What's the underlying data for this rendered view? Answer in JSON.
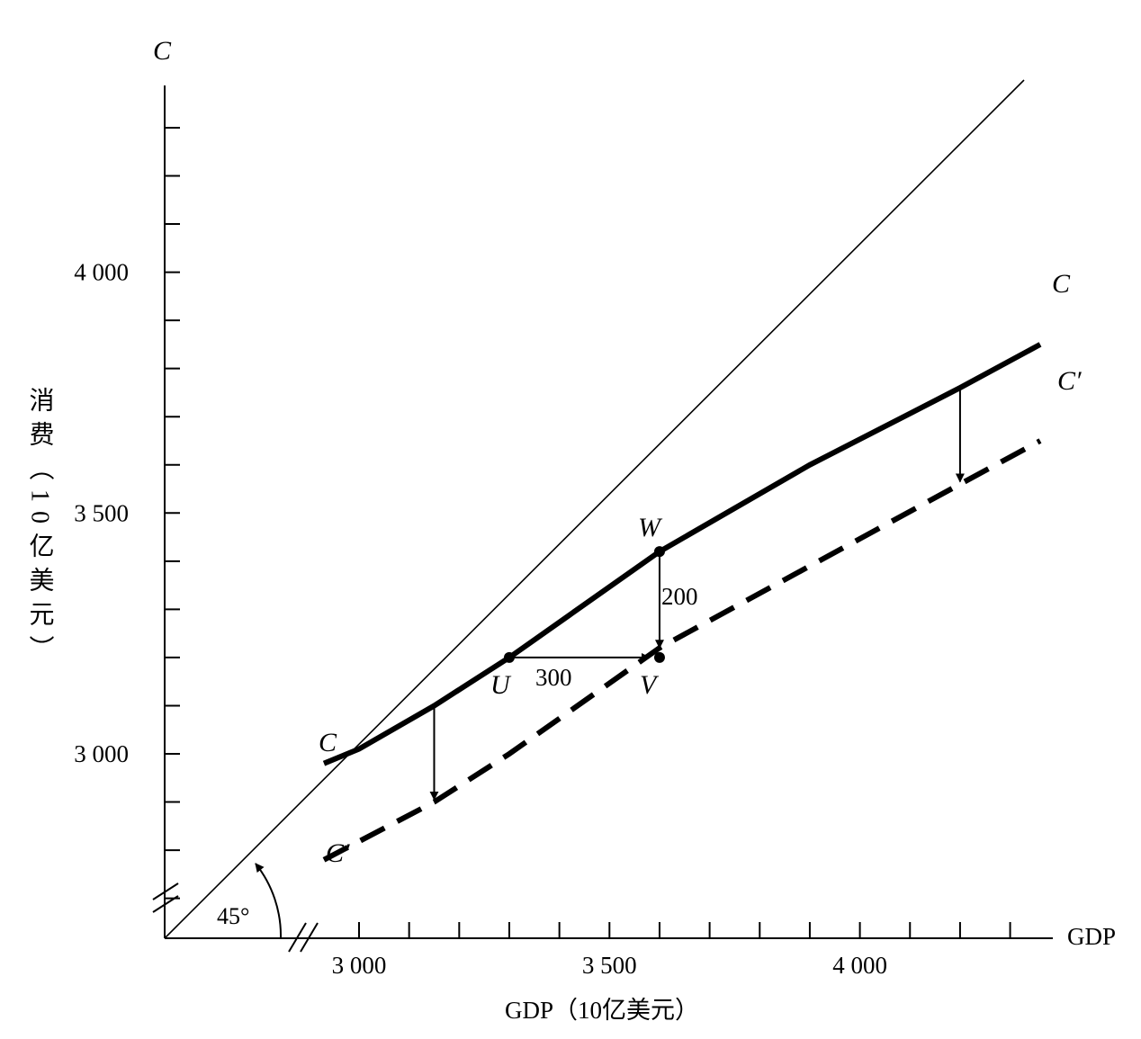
{
  "chart_data": {
    "type": "line",
    "title": "",
    "xlabel": "GDP（10亿美元）",
    "ylabel": "消费（10亿美元）",
    "x_axis_end_label": "GDP",
    "y_axis_top_label": "C",
    "xlim": [
      2600,
      4360
    ],
    "ylim": [
      2620,
      4500
    ],
    "x_tick_labels": [
      {
        "value": 3000,
        "label": "3 000"
      },
      {
        "value": 3500,
        "label": "3 500"
      },
      {
        "value": 4000,
        "label": "4 000"
      }
    ],
    "y_tick_labels": [
      {
        "value": 3000,
        "label": "3 000"
      },
      {
        "value": 3500,
        "label": "3 500"
      },
      {
        "value": 4000,
        "label": "4 000"
      }
    ],
    "x_minor_step": 100,
    "y_minor_step": 100,
    "axis_break": true,
    "grid": false,
    "series": [
      {
        "name": "45°",
        "style": "solid-thin",
        "x": [
          2610,
          4360
        ],
        "y": [
          2610,
          4360
        ]
      },
      {
        "name": "C",
        "style": "solid-thick",
        "x": [
          2930,
          3000,
          3150,
          3300,
          3600,
          3900,
          4200,
          4360
        ],
        "y": [
          2980,
          3010,
          3100,
          3200,
          3420,
          3600,
          3760,
          3850
        ]
      },
      {
        "name": "C′",
        "style": "dashed-thick",
        "x": [
          2930,
          3150,
          3300,
          3600,
          4200,
          4360
        ],
        "y": [
          2780,
          2900,
          3000,
          3220,
          3560,
          3650
        ]
      }
    ],
    "points": [
      {
        "label": "U",
        "x": 3300,
        "y": 3200
      },
      {
        "label": "V",
        "x": 3600,
        "y": 3200
      },
      {
        "label": "W",
        "x": 3600,
        "y": 3420
      }
    ],
    "arrows": [
      {
        "from": [
          3300,
          3200
        ],
        "to": [
          3580,
          3200
        ],
        "label": "300"
      },
      {
        "from": [
          3600,
          3420
        ],
        "to": [
          3600,
          3220
        ],
        "label": "200"
      },
      {
        "from": [
          3150,
          3100
        ],
        "to": [
          3150,
          2905
        ],
        "label": ""
      },
      {
        "from": [
          4200,
          3760
        ],
        "to": [
          4200,
          3565
        ],
        "label": ""
      }
    ],
    "curve_end_labels": {
      "c_right": "C",
      "c_left": "C",
      "cprime_right": "C′",
      "cprime_left": "C′"
    },
    "angle_label": "45°"
  }
}
